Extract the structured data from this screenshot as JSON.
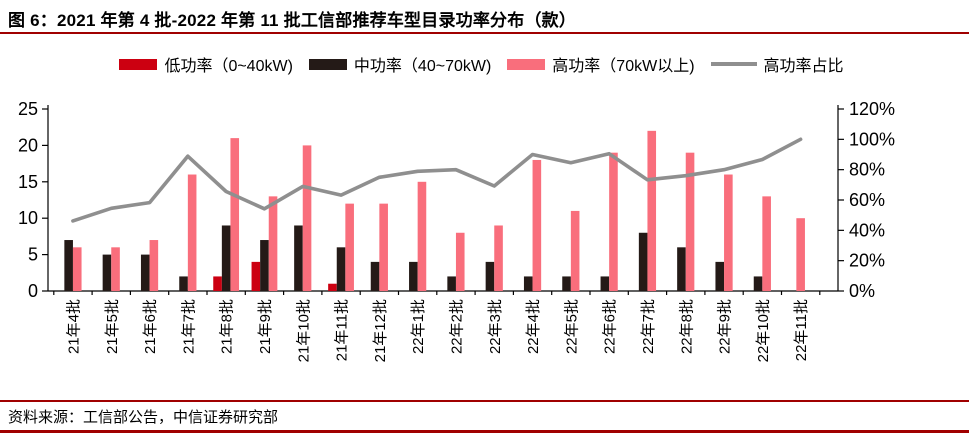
{
  "title": "图 6：2021 年第 4 批-2022 年第 11 批工信部推荐车型目录功率分布（款）",
  "footer": {
    "source": "资料来源：工信部公告，中信证券研究部"
  },
  "accents": {
    "rule_red": "#a00000",
    "axis_black": "#000000"
  },
  "chart_data": {
    "type": "bar+line",
    "title": "2021年第4批-2022年第11批工信部推荐车型目录功率分布（款）",
    "categories": [
      "21年4批",
      "21年5批",
      "21年6批",
      "21年7批",
      "21年8批",
      "21年9批",
      "21年10批",
      "21年11批",
      "21年12批",
      "22年1批",
      "22年2批",
      "22年3批",
      "22年4批",
      "22年5批",
      "22年6批",
      "22年7批",
      "22年8批",
      "22年9批",
      "22年10批",
      "22年11批"
    ],
    "series": [
      {
        "name": "低功率（0~40kW)",
        "type": "bar",
        "axis": "left",
        "color": "#cc0011",
        "values": [
          0,
          0,
          0,
          0,
          2,
          4,
          0,
          1,
          0,
          0,
          0,
          0,
          0,
          0,
          0,
          0,
          0,
          0,
          0,
          0
        ]
      },
      {
        "name": "中功率（40~70kW)",
        "type": "bar",
        "axis": "left",
        "color": "#241a17",
        "values": [
          7,
          5,
          5,
          2,
          9,
          7,
          9,
          6,
          4,
          4,
          2,
          4,
          2,
          2,
          2,
          8,
          6,
          4,
          2,
          0
        ]
      },
      {
        "name": "高功率（70kW以上)",
        "type": "bar",
        "axis": "left",
        "color": "#f96e7c",
        "values": [
          6,
          6,
          7,
          16,
          21,
          13,
          20,
          12,
          12,
          15,
          8,
          9,
          18,
          11,
          19,
          22,
          19,
          16,
          13,
          10
        ]
      },
      {
        "name": "高功率占比",
        "type": "line",
        "axis": "right",
        "color": "#8f8f8f",
        "values_pct": [
          46.2,
          54.5,
          58.3,
          88.9,
          65.6,
          54.2,
          69.0,
          63.2,
          75.0,
          78.9,
          80.0,
          69.2,
          90.0,
          84.6,
          90.5,
          73.3,
          76.0,
          80.0,
          86.7,
          100.0
        ]
      }
    ],
    "left_axis": {
      "min": 0,
      "max": 25,
      "step": 5,
      "tick_labels": [
        "0",
        "5",
        "10",
        "15",
        "20",
        "25"
      ]
    },
    "right_axis": {
      "min": 0,
      "max": 120,
      "step": 20,
      "suffix": "%",
      "tick_labels": [
        "0%",
        "20%",
        "40%",
        "60%",
        "80%",
        "100%",
        "120%"
      ]
    },
    "grid": false,
    "legend_position": "top"
  }
}
